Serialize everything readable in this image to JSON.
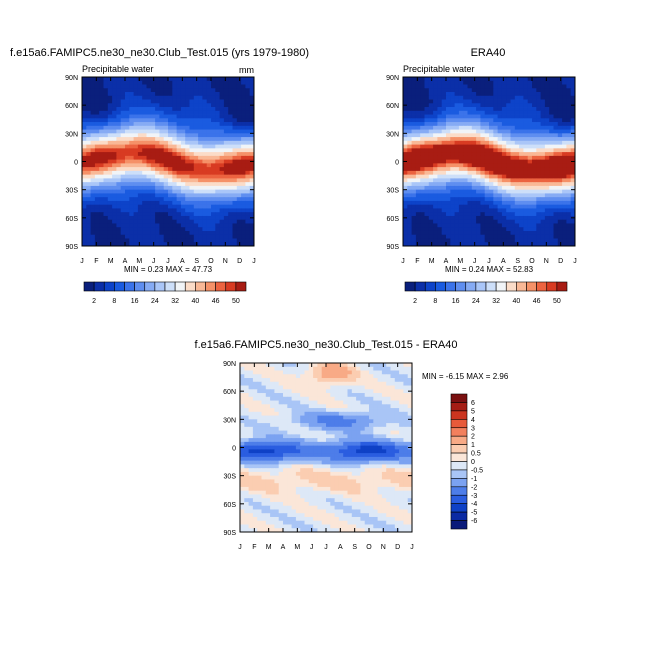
{
  "months": [
    "J",
    "F",
    "M",
    "A",
    "M",
    "J",
    "J",
    "A",
    "S",
    "O",
    "N",
    "D",
    "J"
  ],
  "lat_labels": [
    "90N",
    "60N",
    "30N",
    "0",
    "30S",
    "60S",
    "90S"
  ],
  "abs_levels": [
    2,
    5,
    8,
    12,
    16,
    20,
    24,
    28,
    32,
    36,
    40,
    43,
    46,
    48,
    50
  ],
  "abs_label_levels": [
    "2",
    "8",
    "16",
    "24",
    "32",
    "40",
    "46",
    "50"
  ],
  "abs_colors": [
    "#0a1f7c",
    "#0b2fa8",
    "#0d43c9",
    "#1a5be0",
    "#3b73ea",
    "#5f8ef0",
    "#86abf4",
    "#aac6f8",
    "#cddff9",
    "#f1f4f7",
    "#fbdcc8",
    "#f9b896",
    "#f59168",
    "#ec6340",
    "#d83b22",
    "#a81c13"
  ],
  "diff_levels": [
    -6,
    -5,
    -4,
    -3,
    -2,
    -1,
    -0.5,
    0,
    0.5,
    1,
    2,
    3,
    4,
    5,
    6
  ],
  "diff_labels": [
    "6",
    "5",
    "4",
    "3",
    "2",
    "1",
    "0.5",
    "0",
    "-0.5",
    "-1",
    "-2",
    "-3",
    "-4",
    "-5",
    "-6"
  ],
  "diff_colors": [
    "#0a1a7a",
    "#0b2aa3",
    "#0f41c6",
    "#2a5de0",
    "#4d7de9",
    "#7ba2f1",
    "#a9c5f6",
    "#dde8f7",
    "#fbe6d8",
    "#fbcdb1",
    "#f8aa86",
    "#f2805d",
    "#e75a3a",
    "#cc3520",
    "#a51d14",
    "#7a1010"
  ],
  "chart_data": [
    {
      "type": "heatmap",
      "title": "f.e15a6.FAMIPC5.ne30_ne30.Club_Test.015 (yrs 1979-1980)",
      "subtitle_left": "Precipitable water",
      "subtitle_right": "mm",
      "x": [
        "J",
        "F",
        "M",
        "A",
        "M",
        "J",
        "J",
        "A",
        "S",
        "O",
        "N",
        "D",
        "J"
      ],
      "ylabels": [
        "90N",
        "60N",
        "30N",
        "0",
        "30S",
        "60S",
        "90S"
      ],
      "ylim": [
        -90,
        90
      ],
      "stats": "MIN =   0.23 MAX =  47.73",
      "min": 0.23,
      "max": 47.73,
      "colorbar_levels": [
        2,
        5,
        8,
        12,
        16,
        20,
        24,
        28,
        32,
        36,
        40,
        43,
        46,
        48,
        50
      ]
    },
    {
      "type": "heatmap",
      "title": "ERA40",
      "subtitle_left": "Precipitable water",
      "x": [
        "J",
        "F",
        "M",
        "A",
        "M",
        "J",
        "J",
        "A",
        "S",
        "O",
        "N",
        "D",
        "J"
      ],
      "ylabels": [
        "90N",
        "60N",
        "30N",
        "0",
        "30S",
        "60S",
        "90S"
      ],
      "ylim": [
        -90,
        90
      ],
      "stats": "MIN =   0.24 MAX =  52.83",
      "min": 0.24,
      "max": 52.83,
      "colorbar_levels": [
        2,
        5,
        8,
        12,
        16,
        20,
        24,
        28,
        32,
        36,
        40,
        43,
        46,
        48,
        50
      ]
    },
    {
      "type": "heatmap",
      "title": "f.e15a6.FAMIPC5.ne30_ne30.Club_Test.015 - ERA40",
      "x": [
        "J",
        "F",
        "M",
        "A",
        "M",
        "J",
        "J",
        "A",
        "S",
        "O",
        "N",
        "D",
        "J"
      ],
      "ylabels": [
        "90N",
        "60N",
        "30N",
        "0",
        "30S",
        "60S",
        "90S"
      ],
      "ylim": [
        -90,
        90
      ],
      "stats": "MIN =  -6.15 MAX =   2.96",
      "min": -6.15,
      "max": 2.96,
      "colorbar_levels": [
        -6,
        -5,
        -4,
        -3,
        -2,
        -1,
        -0.5,
        0,
        0.5,
        1,
        2,
        3,
        4,
        5,
        6
      ]
    }
  ]
}
